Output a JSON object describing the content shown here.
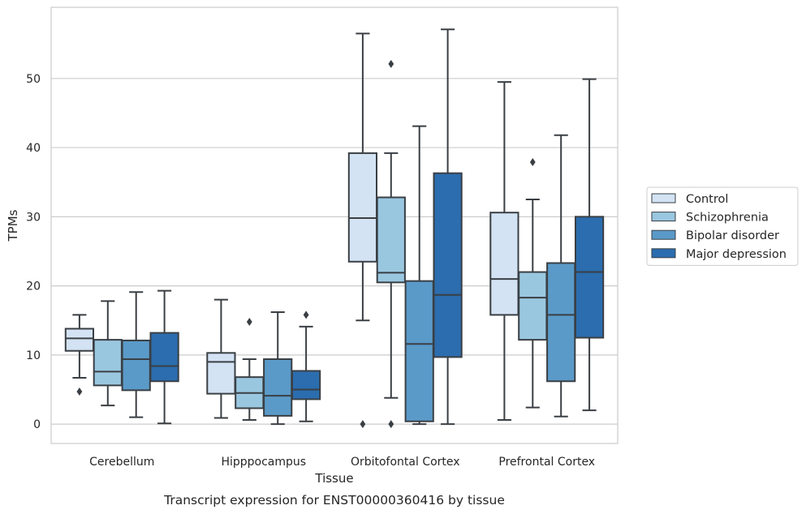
{
  "chart_data": {
    "type": "box",
    "caption": "Transcript expression for ENST00000360416 by tissue",
    "xlabel": "Tissue",
    "ylabel": "TPMs",
    "ylim": [
      -2.8,
      60.3
    ],
    "yticks": [
      0,
      10,
      20,
      30,
      40,
      50
    ],
    "grid": "horizontal",
    "legend_position": "right",
    "categories": [
      "Cerebellum",
      "Hipppocampus",
      "Orbitofontal Cortex",
      "Prefrontal Cortex"
    ],
    "series": [
      {
        "name": "Control",
        "color": "#d3e3f3",
        "boxes": [
          {
            "whislo": 6.7,
            "q1": 10.6,
            "med": 12.4,
            "q3": 13.8,
            "whishi": 15.8,
            "fliers": [
              4.7
            ]
          },
          {
            "whislo": 0.9,
            "q1": 4.4,
            "med": 9.0,
            "q3": 10.3,
            "whishi": 18.0,
            "fliers": []
          },
          {
            "whislo": 15.0,
            "q1": 23.5,
            "med": 29.8,
            "q3": 39.2,
            "whishi": 56.5,
            "fliers": [
              0.0
            ]
          },
          {
            "whislo": 0.6,
            "q1": 15.8,
            "med": 21.0,
            "q3": 30.6,
            "whishi": 49.5,
            "fliers": []
          }
        ]
      },
      {
        "name": "Schizophrenia",
        "color": "#9ac7e0",
        "boxes": [
          {
            "whislo": 2.7,
            "q1": 5.6,
            "med": 7.6,
            "q3": 12.2,
            "whishi": 17.8,
            "fliers": []
          },
          {
            "whislo": 0.6,
            "q1": 2.3,
            "med": 4.5,
            "q3": 6.8,
            "whishi": 9.4,
            "fliers": [
              14.8
            ]
          },
          {
            "whislo": 3.8,
            "q1": 20.5,
            "med": 21.9,
            "q3": 32.8,
            "whishi": 39.2,
            "fliers": [
              52.1,
              0.0
            ]
          },
          {
            "whislo": 2.4,
            "q1": 12.2,
            "med": 18.3,
            "q3": 22.0,
            "whishi": 32.5,
            "fliers": [
              37.9
            ]
          }
        ]
      },
      {
        "name": "Bipolar disorder",
        "color": "#5a9ac8",
        "boxes": [
          {
            "whislo": 1.0,
            "q1": 4.9,
            "med": 9.4,
            "q3": 12.1,
            "whishi": 19.1,
            "fliers": []
          },
          {
            "whislo": 0.0,
            "q1": 1.2,
            "med": 4.1,
            "q3": 9.4,
            "whishi": 16.2,
            "fliers": []
          },
          {
            "whislo": 0.0,
            "q1": 0.4,
            "med": 11.6,
            "q3": 20.7,
            "whishi": 43.1,
            "fliers": []
          },
          {
            "whislo": 1.1,
            "q1": 6.2,
            "med": 15.8,
            "q3": 23.3,
            "whishi": 41.8,
            "fliers": []
          }
        ]
      },
      {
        "name": "Major depression",
        "color": "#2b6dae",
        "boxes": [
          {
            "whislo": 0.1,
            "q1": 6.2,
            "med": 8.4,
            "q3": 13.2,
            "whishi": 19.3,
            "fliers": []
          },
          {
            "whislo": 0.4,
            "q1": 3.6,
            "med": 5.0,
            "q3": 7.7,
            "whishi": 14.1,
            "fliers": [
              15.8
            ]
          },
          {
            "whislo": 0.0,
            "q1": 9.7,
            "med": 18.7,
            "q3": 36.3,
            "whishi": 57.1,
            "fliers": []
          },
          {
            "whislo": 2.0,
            "q1": 12.5,
            "med": 22.0,
            "q3": 30.0,
            "whishi": 49.9,
            "fliers": []
          }
        ]
      }
    ]
  }
}
